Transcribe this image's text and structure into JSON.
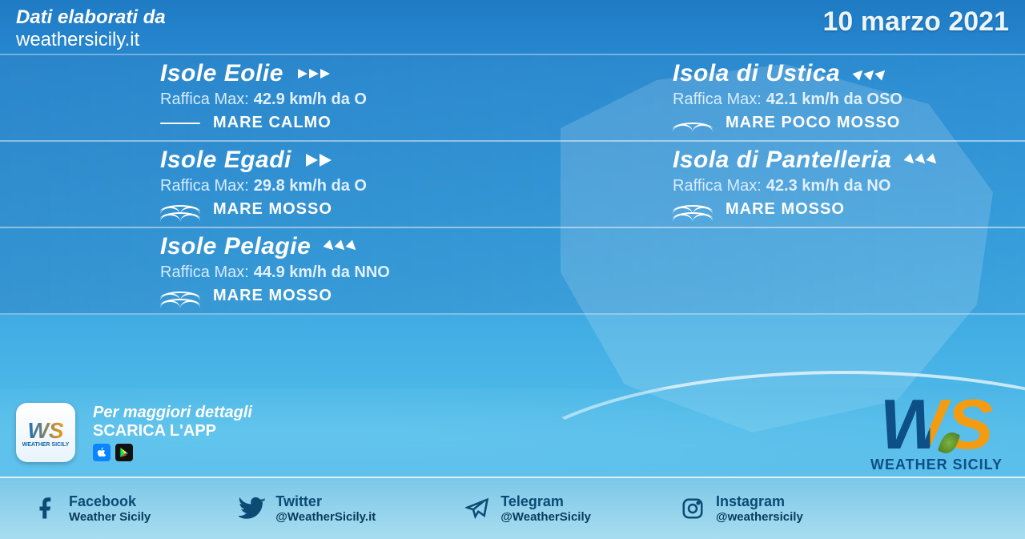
{
  "header": {
    "credit_line1": "Dati elaborati da",
    "credit_line2": "weathersicily.it",
    "date": "10 marzo 2021"
  },
  "colors": {
    "text": "#ffffff",
    "footer_text": "#0d4a74",
    "accent_blue": "#1570b8",
    "accent_orange": "#f39c12"
  },
  "islands": [
    {
      "name": "Isole Eolie",
      "gust_label": "Raffica Max:",
      "gust_value": "42.9 km/h da O",
      "sea": "MARE CALMO",
      "wind_style": "triple-right",
      "sea_style": "flat"
    },
    {
      "name": "Isola di Ustica",
      "gust_label": "Raffica Max:",
      "gust_value": "42.1 km/h da OSO",
      "sea": "MARE POCO MOSSO",
      "wind_style": "triple-diag-up",
      "sea_style": "one"
    },
    {
      "name": "Isole Egadi",
      "gust_label": "Raffica Max:",
      "gust_value": "29.8 km/h da O",
      "sea": "MARE MOSSO",
      "wind_style": "double-right",
      "sea_style": "two"
    },
    {
      "name": "Isola di Pantelleria",
      "gust_label": "Raffica Max:",
      "gust_value": "42.3 km/h da NO",
      "sea": "MARE MOSSO",
      "wind_style": "triple-diag",
      "sea_style": "two"
    },
    {
      "name": "Isole Pelagie",
      "gust_label": "Raffica Max:",
      "gust_value": "44.9 km/h da NNO",
      "sea": "MARE MOSSO",
      "wind_style": "triple-diag",
      "sea_style": "two"
    }
  ],
  "app": {
    "line1": "Per maggiori dettagli",
    "line2": "SCARICA L'APP",
    "logo_text": "WS",
    "logo_caption": "WEATHER SICILY"
  },
  "brand": {
    "logo_text": "WS",
    "caption": "WEATHER SICILY"
  },
  "socials": [
    {
      "icon": "facebook",
      "name": "Facebook",
      "handle": "Weather Sicily"
    },
    {
      "icon": "twitter",
      "name": "Twitter",
      "handle": "@WeatherSicily.it"
    },
    {
      "icon": "telegram",
      "name": "Telegram",
      "handle": "@WeatherSicily"
    },
    {
      "icon": "instagram",
      "name": "Instagram",
      "handle": "@weathersicily"
    }
  ]
}
